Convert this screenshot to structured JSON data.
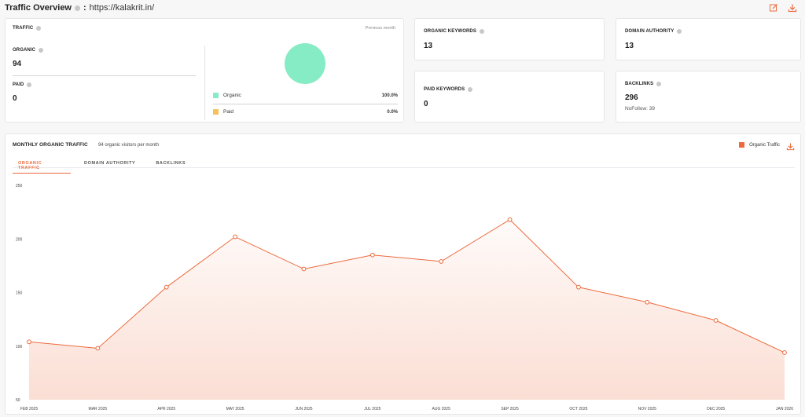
{
  "header": {
    "title": "Traffic Overview",
    "separator": ":",
    "url": "https://kalakrit.in/"
  },
  "traffic": {
    "label": "TRAFFIC",
    "period": "Previous month",
    "organic_label": "ORGANIC",
    "organic_value": "94",
    "paid_label": "PAID",
    "paid_value": "0",
    "legend": [
      {
        "name": "Organic",
        "pct": "100.0%",
        "color": "#86ecc5"
      },
      {
        "name": "Paid",
        "pct": "0.0%",
        "color": "#f6c25f"
      }
    ]
  },
  "stats": {
    "organic_keywords": {
      "label": "ORGANIC KEYWORDS",
      "value": "13"
    },
    "domain_authority": {
      "label": "DOMAIN AUTHORITY",
      "value": "13"
    },
    "paid_keywords": {
      "label": "PAID KEYWORDS",
      "value": "0"
    },
    "backlinks": {
      "label": "BACKLINKS",
      "value": "296",
      "nofollow": "NoFollow: 39"
    }
  },
  "monthly": {
    "label": "MONTHLY ORGANIC TRAFFIC",
    "subtitle": "94 organic visitors per month",
    "legend": "Organic Traffic",
    "tabs": [
      "ORGANIC TRAFFIC",
      "DOMAIN AUTHORITY",
      "BACKLINKS"
    ],
    "active_tab": 0
  },
  "colors": {
    "accent": "#ec6a3c",
    "organic": "#86ecc5",
    "paid": "#f6c25f"
  },
  "icons": [
    "edit-icon",
    "download-icon",
    "info-icon"
  ],
  "chart_data": {
    "type": "area",
    "categories": [
      "FEB 2025",
      "MAR 2025",
      "APR 2025",
      "MAY 2025",
      "JUN 2025",
      "JUL 2025",
      "AUG 2025",
      "SEP 2025",
      "OCT 2025",
      "NOV 2025",
      "DEC 2025",
      "JAN 2026"
    ],
    "series": [
      {
        "name": "Organic Traffic",
        "values": [
          104,
          98,
          155,
          202,
          172,
          185,
          179,
          218,
          155,
          141,
          124,
          94
        ]
      }
    ],
    "yticks": [
      50,
      100,
      150,
      200,
      250
    ],
    "ylim": [
      50,
      250
    ],
    "grid": false,
    "legend": "top-right"
  }
}
